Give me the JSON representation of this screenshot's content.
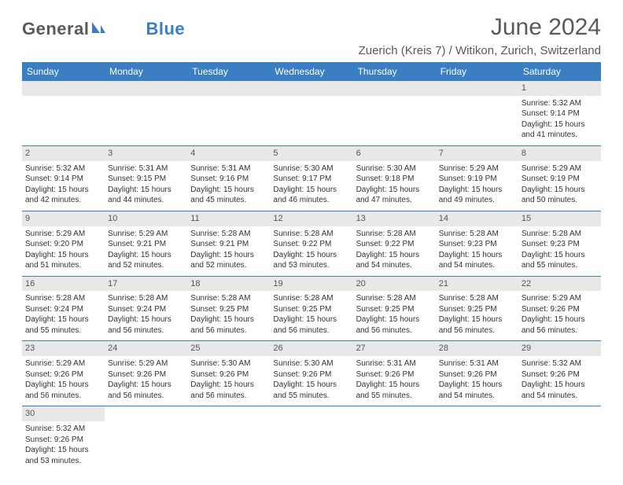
{
  "logo": {
    "part1": "General",
    "part2": "Blue"
  },
  "header": {
    "title": "June 2024",
    "location": "Zuerich (Kreis 7) / Witikon, Zurich, Switzerland"
  },
  "colors": {
    "brand_blue": "#3a7fc4",
    "day_bg": "#e8e8e8",
    "text_gray": "#5a5a5a"
  },
  "weekdays": [
    "Sunday",
    "Monday",
    "Tuesday",
    "Wednesday",
    "Thursday",
    "Friday",
    "Saturday"
  ],
  "weeks": [
    [
      {
        "blank": true
      },
      {
        "blank": true
      },
      {
        "blank": true
      },
      {
        "blank": true
      },
      {
        "blank": true
      },
      {
        "blank": true
      },
      {
        "day": "1",
        "sunrise": "Sunrise: 5:32 AM",
        "sunset": "Sunset: 9:14 PM",
        "daylight": "Daylight: 15 hours and 41 minutes."
      }
    ],
    [
      {
        "day": "2",
        "sunrise": "Sunrise: 5:32 AM",
        "sunset": "Sunset: 9:14 PM",
        "daylight": "Daylight: 15 hours and 42 minutes."
      },
      {
        "day": "3",
        "sunrise": "Sunrise: 5:31 AM",
        "sunset": "Sunset: 9:15 PM",
        "daylight": "Daylight: 15 hours and 44 minutes."
      },
      {
        "day": "4",
        "sunrise": "Sunrise: 5:31 AM",
        "sunset": "Sunset: 9:16 PM",
        "daylight": "Daylight: 15 hours and 45 minutes."
      },
      {
        "day": "5",
        "sunrise": "Sunrise: 5:30 AM",
        "sunset": "Sunset: 9:17 PM",
        "daylight": "Daylight: 15 hours and 46 minutes."
      },
      {
        "day": "6",
        "sunrise": "Sunrise: 5:30 AM",
        "sunset": "Sunset: 9:18 PM",
        "daylight": "Daylight: 15 hours and 47 minutes."
      },
      {
        "day": "7",
        "sunrise": "Sunrise: 5:29 AM",
        "sunset": "Sunset: 9:19 PM",
        "daylight": "Daylight: 15 hours and 49 minutes."
      },
      {
        "day": "8",
        "sunrise": "Sunrise: 5:29 AM",
        "sunset": "Sunset: 9:19 PM",
        "daylight": "Daylight: 15 hours and 50 minutes."
      }
    ],
    [
      {
        "day": "9",
        "sunrise": "Sunrise: 5:29 AM",
        "sunset": "Sunset: 9:20 PM",
        "daylight": "Daylight: 15 hours and 51 minutes."
      },
      {
        "day": "10",
        "sunrise": "Sunrise: 5:29 AM",
        "sunset": "Sunset: 9:21 PM",
        "daylight": "Daylight: 15 hours and 52 minutes."
      },
      {
        "day": "11",
        "sunrise": "Sunrise: 5:28 AM",
        "sunset": "Sunset: 9:21 PM",
        "daylight": "Daylight: 15 hours and 52 minutes."
      },
      {
        "day": "12",
        "sunrise": "Sunrise: 5:28 AM",
        "sunset": "Sunset: 9:22 PM",
        "daylight": "Daylight: 15 hours and 53 minutes."
      },
      {
        "day": "13",
        "sunrise": "Sunrise: 5:28 AM",
        "sunset": "Sunset: 9:22 PM",
        "daylight": "Daylight: 15 hours and 54 minutes."
      },
      {
        "day": "14",
        "sunrise": "Sunrise: 5:28 AM",
        "sunset": "Sunset: 9:23 PM",
        "daylight": "Daylight: 15 hours and 54 minutes."
      },
      {
        "day": "15",
        "sunrise": "Sunrise: 5:28 AM",
        "sunset": "Sunset: 9:23 PM",
        "daylight": "Daylight: 15 hours and 55 minutes."
      }
    ],
    [
      {
        "day": "16",
        "sunrise": "Sunrise: 5:28 AM",
        "sunset": "Sunset: 9:24 PM",
        "daylight": "Daylight: 15 hours and 55 minutes."
      },
      {
        "day": "17",
        "sunrise": "Sunrise: 5:28 AM",
        "sunset": "Sunset: 9:24 PM",
        "daylight": "Daylight: 15 hours and 56 minutes."
      },
      {
        "day": "18",
        "sunrise": "Sunrise: 5:28 AM",
        "sunset": "Sunset: 9:25 PM",
        "daylight": "Daylight: 15 hours and 56 minutes."
      },
      {
        "day": "19",
        "sunrise": "Sunrise: 5:28 AM",
        "sunset": "Sunset: 9:25 PM",
        "daylight": "Daylight: 15 hours and 56 minutes."
      },
      {
        "day": "20",
        "sunrise": "Sunrise: 5:28 AM",
        "sunset": "Sunset: 9:25 PM",
        "daylight": "Daylight: 15 hours and 56 minutes."
      },
      {
        "day": "21",
        "sunrise": "Sunrise: 5:28 AM",
        "sunset": "Sunset: 9:25 PM",
        "daylight": "Daylight: 15 hours and 56 minutes."
      },
      {
        "day": "22",
        "sunrise": "Sunrise: 5:29 AM",
        "sunset": "Sunset: 9:26 PM",
        "daylight": "Daylight: 15 hours and 56 minutes."
      }
    ],
    [
      {
        "day": "23",
        "sunrise": "Sunrise: 5:29 AM",
        "sunset": "Sunset: 9:26 PM",
        "daylight": "Daylight: 15 hours and 56 minutes."
      },
      {
        "day": "24",
        "sunrise": "Sunrise: 5:29 AM",
        "sunset": "Sunset: 9:26 PM",
        "daylight": "Daylight: 15 hours and 56 minutes."
      },
      {
        "day": "25",
        "sunrise": "Sunrise: 5:30 AM",
        "sunset": "Sunset: 9:26 PM",
        "daylight": "Daylight: 15 hours and 56 minutes."
      },
      {
        "day": "26",
        "sunrise": "Sunrise: 5:30 AM",
        "sunset": "Sunset: 9:26 PM",
        "daylight": "Daylight: 15 hours and 55 minutes."
      },
      {
        "day": "27",
        "sunrise": "Sunrise: 5:31 AM",
        "sunset": "Sunset: 9:26 PM",
        "daylight": "Daylight: 15 hours and 55 minutes."
      },
      {
        "day": "28",
        "sunrise": "Sunrise: 5:31 AM",
        "sunset": "Sunset: 9:26 PM",
        "daylight": "Daylight: 15 hours and 54 minutes."
      },
      {
        "day": "29",
        "sunrise": "Sunrise: 5:32 AM",
        "sunset": "Sunset: 9:26 PM",
        "daylight": "Daylight: 15 hours and 54 minutes."
      }
    ],
    [
      {
        "day": "30",
        "sunrise": "Sunrise: 5:32 AM",
        "sunset": "Sunset: 9:26 PM",
        "daylight": "Daylight: 15 hours and 53 minutes."
      },
      {
        "blank": true
      },
      {
        "blank": true
      },
      {
        "blank": true
      },
      {
        "blank": true
      },
      {
        "blank": true
      },
      {
        "blank": true
      }
    ]
  ]
}
